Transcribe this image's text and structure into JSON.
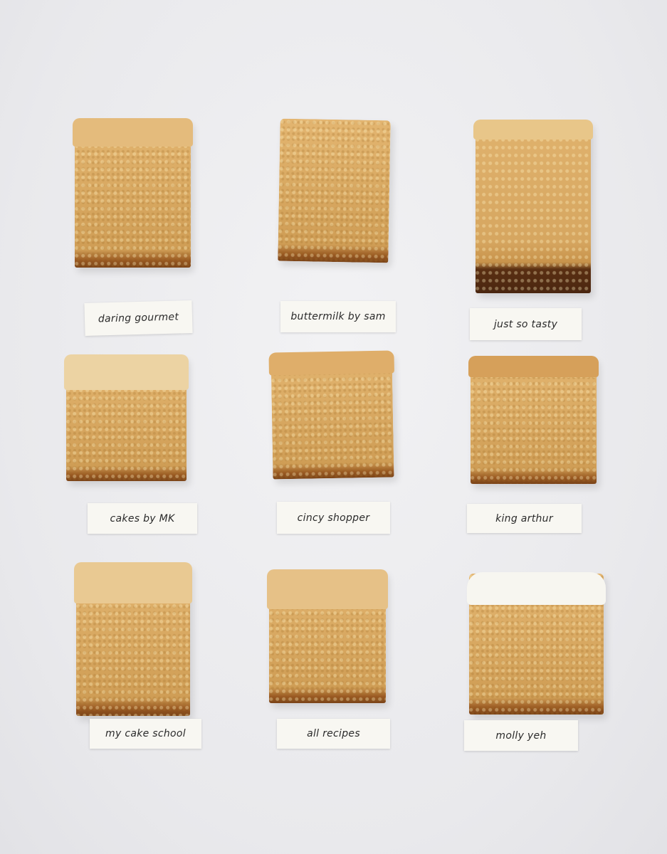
{
  "labels": [
    "daring gourmet",
    "buttermilk by sam",
    "just so tasty",
    "cakes by MK",
    "cincy shopper",
    "king arthur",
    "my cake school",
    "all recipes",
    "molly yeh"
  ],
  "colors": {
    "background": "#ececef",
    "crumb": "#d8a861",
    "crust": "#7a4318",
    "caramel_frosting": "#e9c992",
    "white_frosting": "#f7f6f0",
    "label_paper": "#f8f7f2"
  }
}
